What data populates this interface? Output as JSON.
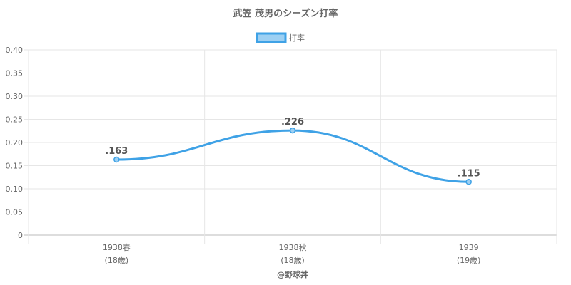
{
  "chart_data": {
    "type": "line",
    "title": "武笠 茂男のシーズン打率",
    "categories": [
      "1938春",
      "1938秋",
      "1939"
    ],
    "category_sublabels": [
      "(18歳)",
      "(18歳)",
      "(19歳)"
    ],
    "series": [
      {
        "name": "打率",
        "values": [
          0.163,
          0.226,
          0.115
        ],
        "data_labels": [
          ".163",
          ".226",
          ".115"
        ]
      }
    ],
    "ylim": [
      0,
      0.4
    ],
    "yticks": [
      "0",
      "0.05",
      "0.10",
      "0.15",
      "0.20",
      "0.25",
      "0.30",
      "0.35",
      "0.40"
    ],
    "grid": true,
    "legend_position": "top-center",
    "line_color": "#3fa2e6",
    "fill_color": "#9dd0f3"
  },
  "credit": "@野球丼"
}
